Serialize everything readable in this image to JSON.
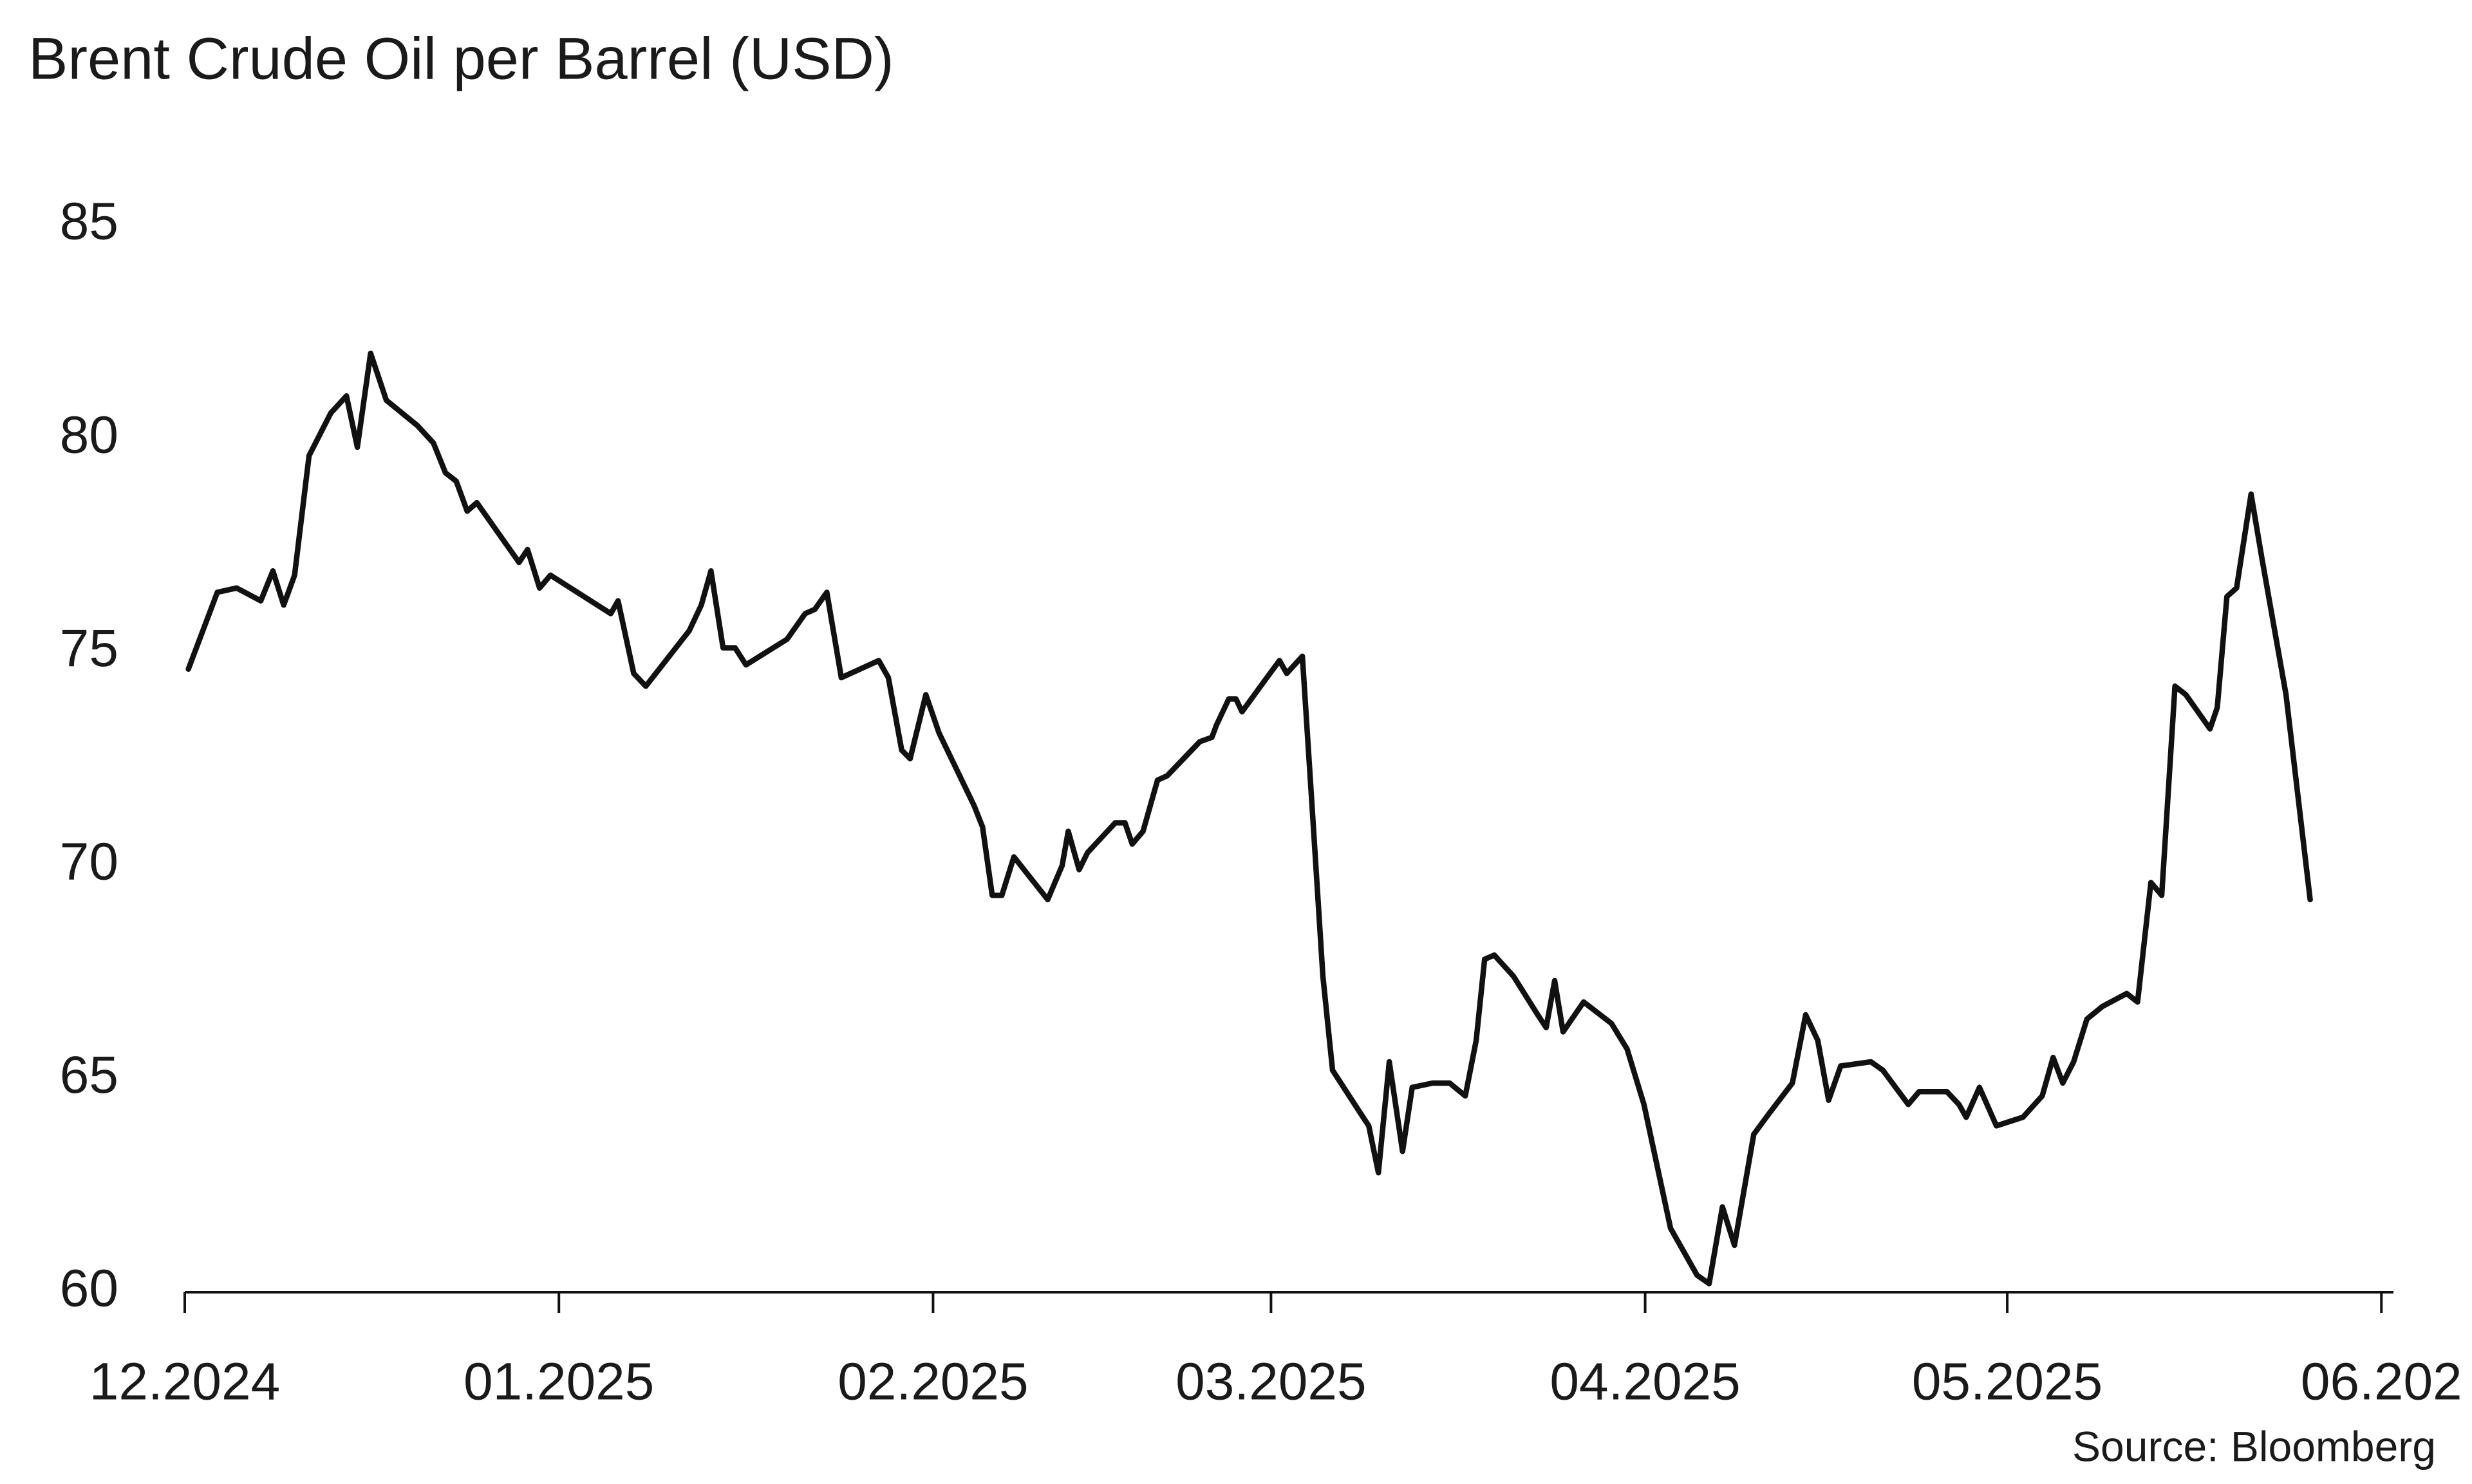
{
  "chart_data": {
    "type": "line",
    "title": "Brent Crude Oil per Barrel (USD)",
    "source": "Source: Bloomberg",
    "x": [
      0.3,
      2.7,
      4.3,
      6.3,
      7.3,
      8.2,
      9.1,
      10.3,
      12.1,
      13.4,
      14.3,
      15.4,
      16.7,
      19.3,
      20.6,
      21.6,
      22.5,
      23.4,
      24.2,
      27.7,
      28.4,
      29.4,
      30.3,
      35.3,
      35.9,
      37.2,
      38.2,
      41.8,
      42.8,
      43.6,
      44.6,
      45.6,
      46.5,
      49.9,
      51.4,
      52.2,
      53.2,
      54.4,
      57.5,
      58.3,
      59.4,
      60.1,
      61.4,
      62.5,
      65.4,
      66.1,
      66.9,
      67.7,
      68.7,
      71.5,
      72.7,
      73.2,
      74.1,
      74.8,
      77.1,
      77.9,
      78.5,
      79.4,
      80.6,
      81.4,
      84.1,
      85.1,
      85.5,
      86.5,
      87.1,
      87.6,
      89.4,
      90.7,
      91.3,
      92.6,
      93.4,
      94.3,
      95.1,
      97.4,
      98.1,
      98.9,
      99.8,
      100.9,
      101.7,
      103.4,
      104.8,
      106.1,
      107.0,
      107.7,
      108.5,
      110.1,
      112.1,
      112.8,
      113.5,
      114.2,
      115.9,
      118.2,
      119.5,
      120.9,
      123.1,
      125.3,
      126.3,
      127.4,
      128.4,
      130.0,
      131.3,
      133.2,
      134.3,
      135.3,
      136.2,
      137.2,
      139.7,
      140.7,
      142.8,
      143.7,
      146.0,
      147.0,
      147.6,
      148.7,
      150.1,
      152.3,
      153.9,
      154.8,
      155.6,
      156.5,
      157.6,
      158.9,
      160.9,
      161.8,
      162.9,
      163.8,
      164.9,
      165.8,
      167.8,
      168.4,
      169.2,
      170.0,
      171.2,
      172.1,
      174.1,
      176.1
    ],
    "series": [
      {
        "color": "#111111",
        "values": [
          74.6,
          76.4,
          76.5,
          76.2,
          76.9,
          76.1,
          76.8,
          79.6,
          80.6,
          81.0,
          79.8,
          82.0,
          80.9,
          80.3,
          79.9,
          79.2,
          79.0,
          78.3,
          78.5,
          77.1,
          77.4,
          76.5,
          76.8,
          75.9,
          76.2,
          74.5,
          74.2,
          75.5,
          76.1,
          76.9,
          75.1,
          75.1,
          74.7,
          75.3,
          75.9,
          76.0,
          76.4,
          74.4,
          74.8,
          74.4,
          72.7,
          72.5,
          74.0,
          73.1,
          71.4,
          70.9,
          69.3,
          69.3,
          70.2,
          69.2,
          70.0,
          70.8,
          69.9,
          70.3,
          71.0,
          71.0,
          70.5,
          70.8,
          72.0,
          72.1,
          72.9,
          73.0,
          73.3,
          73.9,
          73.9,
          73.6,
          74.3,
          74.8,
          74.5,
          74.9,
          71.4,
          67.4,
          65.2,
          64.2,
          63.9,
          62.8,
          65.4,
          63.3,
          64.8,
          64.9,
          64.9,
          64.6,
          65.9,
          67.8,
          67.9,
          67.4,
          66.5,
          66.2,
          67.3,
          66.1,
          66.8,
          66.3,
          65.7,
          64.4,
          61.5,
          60.4,
          60.2,
          62.0,
          61.1,
          63.7,
          64.2,
          64.9,
          66.5,
          65.9,
          64.5,
          65.3,
          65.4,
          65.2,
          64.4,
          64.7,
          64.7,
          64.4,
          64.1,
          64.8,
          63.9,
          64.1,
          64.6,
          65.5,
          64.9,
          65.4,
          66.4,
          66.7,
          67.0,
          66.8,
          69.6,
          69.3,
          74.2,
          74.0,
          73.2,
          73.7,
          76.3,
          76.5,
          78.7,
          77.2,
          74.0,
          69.2
        ]
      }
    ],
    "xlim": [
      0,
      183
    ],
    "xticks": [
      {
        "value": 0,
        "label": "12.2024"
      },
      {
        "value": 31,
        "label": "01.2025"
      },
      {
        "value": 62,
        "label": "02.2025"
      },
      {
        "value": 90,
        "label": "03.2025"
      },
      {
        "value": 121,
        "label": "04.2025"
      },
      {
        "value": 151,
        "label": "05.2025"
      },
      {
        "value": 182,
        "label": "06.202"
      }
    ],
    "ylim": [
      60,
      85
    ],
    "yticks": [
      60,
      65,
      70,
      75,
      80,
      85
    ],
    "grid": false
  }
}
